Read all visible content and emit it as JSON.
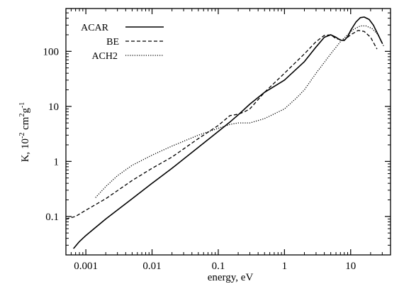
{
  "chart_data": {
    "type": "line",
    "title": "",
    "xlabel": "energy, eV",
    "ylabel": "K, 10",
    "ylabel_parts": {
      "base": "K, 10",
      "exp1": "-2",
      "mid": " cm",
      "exp2": "2",
      "mid2": "g",
      "exp3": "-1"
    },
    "xscale": "log",
    "yscale": "log",
    "xlim": [
      0.0005,
      40
    ],
    "ylim": [
      0.02,
      600
    ],
    "grid": false,
    "legend_position": "top-left",
    "x_ticks": [
      {
        "value": 0.001,
        "label": "0.001"
      },
      {
        "value": 0.01,
        "label": "0.01"
      },
      {
        "value": 0.1,
        "label": "0.1"
      },
      {
        "value": 1,
        "label": "1"
      },
      {
        "value": 10,
        "label": "10"
      }
    ],
    "y_ticks": [
      {
        "value": 0.1,
        "label": "0.1"
      },
      {
        "value": 1,
        "label": "1"
      },
      {
        "value": 10,
        "label": "10"
      },
      {
        "value": 100,
        "label": "100"
      }
    ],
    "series": [
      {
        "name": "ACAR",
        "style": "solid",
        "points": [
          [
            0.00065,
            0.026
          ],
          [
            0.0008,
            0.035
          ],
          [
            0.001,
            0.045
          ],
          [
            0.002,
            0.09
          ],
          [
            0.005,
            0.21
          ],
          [
            0.01,
            0.4
          ],
          [
            0.02,
            0.75
          ],
          [
            0.05,
            1.8
          ],
          [
            0.1,
            3.5
          ],
          [
            0.15,
            5.2
          ],
          [
            0.2,
            7.0
          ],
          [
            0.3,
            11
          ],
          [
            0.5,
            18
          ],
          [
            1,
            30
          ],
          [
            2,
            65
          ],
          [
            3,
            120
          ],
          [
            4,
            180
          ],
          [
            5,
            200
          ],
          [
            6,
            180
          ],
          [
            7,
            160
          ],
          [
            8,
            158
          ],
          [
            9,
            185
          ],
          [
            10,
            240
          ],
          [
            12,
            340
          ],
          [
            14,
            410
          ],
          [
            16,
            420
          ],
          [
            19,
            380
          ],
          [
            22,
            300
          ],
          [
            26,
            200
          ],
          [
            30,
            140
          ]
        ]
      },
      {
        "name": "BE",
        "style": "dashed",
        "points": [
          [
            0.0005,
            0.09
          ],
          [
            0.0007,
            0.1
          ],
          [
            0.001,
            0.13
          ],
          [
            0.002,
            0.21
          ],
          [
            0.005,
            0.45
          ],
          [
            0.01,
            0.75
          ],
          [
            0.02,
            1.2
          ],
          [
            0.05,
            2.6
          ],
          [
            0.1,
            4.5
          ],
          [
            0.15,
            6.8
          ],
          [
            0.2,
            7.2
          ],
          [
            0.25,
            8.0
          ],
          [
            0.3,
            9
          ],
          [
            0.5,
            18
          ],
          [
            1,
            40
          ],
          [
            2,
            90
          ],
          [
            3,
            150
          ],
          [
            4,
            195
          ],
          [
            5,
            200
          ],
          [
            6,
            170
          ],
          [
            8,
            160
          ],
          [
            10,
            200
          ],
          [
            13,
            240
          ],
          [
            16,
            230
          ],
          [
            20,
            180
          ],
          [
            25,
            110
          ]
        ]
      },
      {
        "name": "ACH2",
        "style": "dotted",
        "points": [
          [
            0.0014,
            0.22
          ],
          [
            0.002,
            0.35
          ],
          [
            0.003,
            0.55
          ],
          [
            0.005,
            0.85
          ],
          [
            0.01,
            1.3
          ],
          [
            0.02,
            1.9
          ],
          [
            0.05,
            3.0
          ],
          [
            0.1,
            4.0
          ],
          [
            0.15,
            4.7
          ],
          [
            0.2,
            5.0
          ],
          [
            0.3,
            5.0
          ],
          [
            0.5,
            6.0
          ],
          [
            1,
            9
          ],
          [
            1.5,
            14
          ],
          [
            2,
            20
          ],
          [
            3,
            40
          ],
          [
            5,
            90
          ],
          [
            7,
            150
          ],
          [
            9,
            200
          ],
          [
            11,
            250
          ],
          [
            14,
            290
          ],
          [
            17,
            290
          ],
          [
            21,
            260
          ],
          [
            26,
            200
          ],
          [
            32,
            120
          ]
        ]
      }
    ]
  }
}
